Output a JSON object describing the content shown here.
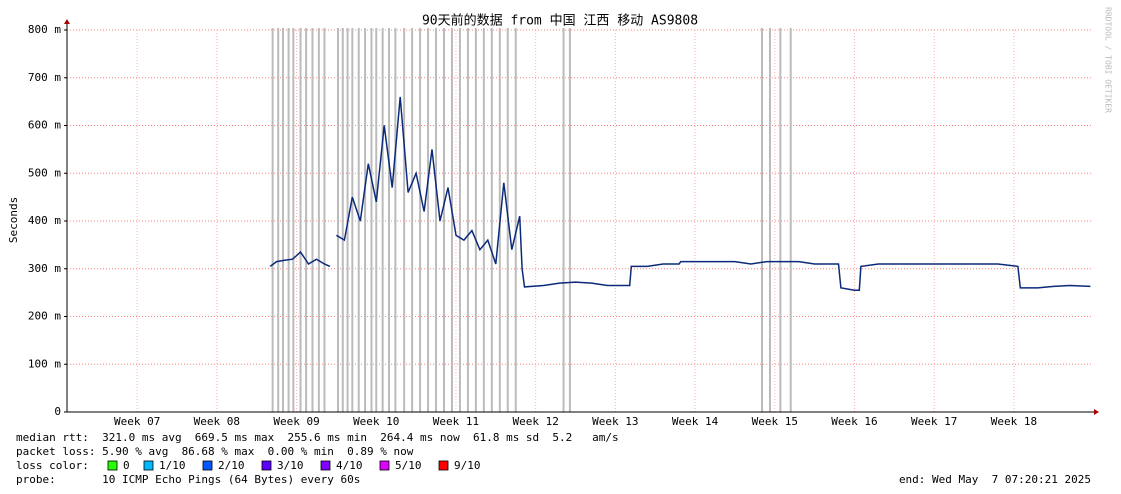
{
  "chart_data": {
    "type": "line",
    "title": "90天前的数据 from 中国 江西 移动 AS9808",
    "y_label": "Seconds",
    "watermark": "RRDTOOL / TOBI OETIKER",
    "xlim": [
      6.62,
      19.48
    ],
    "xticks": [
      {
        "value": 7.5,
        "label": "Week 07"
      },
      {
        "value": 8.5,
        "label": "Week 08"
      },
      {
        "value": 9.5,
        "label": "Week 09"
      },
      {
        "value": 10.5,
        "label": "Week 10"
      },
      {
        "value": 11.5,
        "label": "Week 11"
      },
      {
        "value": 12.5,
        "label": "Week 12"
      },
      {
        "value": 13.5,
        "label": "Week 13"
      },
      {
        "value": 14.5,
        "label": "Week 14"
      },
      {
        "value": 15.5,
        "label": "Week 15"
      },
      {
        "value": 16.5,
        "label": "Week 16"
      },
      {
        "value": 17.5,
        "label": "Week 17"
      },
      {
        "value": 18.5,
        "label": "Week 18"
      }
    ],
    "ylim": [
      0,
      0.8
    ],
    "yticks": [
      0,
      {
        "value": 0.1,
        "label": "100 m"
      },
      {
        "value": 0.2,
        "label": "200 m"
      },
      {
        "value": 0.3,
        "label": "300 m"
      },
      {
        "value": 0.4,
        "label": "400 m"
      },
      {
        "value": 0.5,
        "label": "500 m"
      },
      {
        "value": 0.6,
        "label": "600 m"
      },
      {
        "value": 0.7,
        "label": "700 m"
      },
      {
        "value": 0.8,
        "label": "800 m"
      }
    ],
    "grid": true,
    "loss_spike_color": "#bbbbbb",
    "loss_spikes": [
      9.2,
      9.27,
      9.33,
      9.4,
      9.46,
      9.55,
      9.62,
      9.7,
      9.78,
      9.85,
      10.02,
      10.08,
      10.14,
      10.2,
      10.28,
      10.36,
      10.44,
      10.5,
      10.58,
      10.66,
      10.74,
      10.85,
      10.95,
      11.05,
      11.15,
      11.25,
      11.35,
      11.45,
      11.55,
      11.65,
      11.75,
      11.85,
      11.95,
      12.05,
      12.15,
      12.25,
      12.85,
      12.93,
      15.34,
      15.44,
      15.57,
      15.7
    ],
    "series": [
      {
        "color": "#0b2a7a",
        "x": [
          9.17,
          9.25,
          9.35,
          9.45,
          9.55,
          9.65,
          9.75,
          9.85,
          9.92,
          9.96,
          10.0,
          10.1,
          10.2,
          10.3,
          10.4,
          10.5,
          10.6,
          10.7,
          10.8,
          10.9,
          11.0,
          11.1,
          11.2,
          11.3,
          11.4,
          11.5,
          11.6,
          11.7,
          11.8,
          11.9,
          12.0,
          12.1,
          12.2,
          12.3,
          12.33,
          12.36,
          12.6,
          12.8,
          13.0,
          13.2,
          13.4,
          13.68,
          13.7,
          13.9,
          14.1,
          14.3,
          14.32,
          14.5,
          14.8,
          15.0,
          15.2,
          15.4,
          15.6,
          15.8,
          16.0,
          16.3,
          16.33,
          16.5,
          16.56,
          16.58,
          16.8,
          17.0,
          17.2,
          17.5,
          17.8,
          18.0,
          18.3,
          18.55,
          18.58,
          18.8,
          19.0,
          19.2,
          19.46
        ],
        "values": [
          0.305,
          0.315,
          0.318,
          0.32,
          0.335,
          0.31,
          0.32,
          0.31,
          0.305,
          null,
          0.37,
          0.36,
          0.45,
          0.4,
          0.52,
          0.44,
          0.6,
          0.47,
          0.66,
          0.46,
          0.5,
          0.42,
          0.55,
          0.4,
          0.47,
          0.37,
          0.36,
          0.38,
          0.34,
          0.36,
          0.31,
          0.48,
          0.34,
          0.41,
          0.3,
          0.262,
          0.265,
          0.27,
          0.272,
          0.27,
          0.265,
          0.265,
          0.305,
          0.305,
          0.31,
          0.31,
          0.315,
          0.315,
          0.315,
          0.315,
          0.31,
          0.315,
          0.315,
          0.315,
          0.31,
          0.31,
          0.26,
          0.255,
          0.255,
          0.305,
          0.31,
          0.31,
          0.31,
          0.31,
          0.31,
          0.31,
          0.31,
          0.305,
          0.26,
          0.26,
          0.263,
          0.265,
          0.263
        ]
      }
    ],
    "stats": [
      "median rtt:  321.0 ms avg  669.5 ms max  255.6 ms min  264.4 ms now  61.8 ms sd  5.2   am/s",
      "packet loss: 5.90 % avg  86.68 % max  0.00 % min  0.89 % now"
    ],
    "loss_color_label": "loss color:",
    "loss_colors": [
      {
        "label": "0",
        "color": "#26ff00"
      },
      {
        "label": "1/10",
        "color": "#00b8ff"
      },
      {
        "label": "2/10",
        "color": "#0059ff"
      },
      {
        "label": "3/10",
        "color": "#5e00ff"
      },
      {
        "label": "4/10",
        "color": "#7e00ff"
      },
      {
        "label": "5/10",
        "color": "#dd00ff"
      },
      {
        "label": "9/10",
        "color": "#ff0000"
      }
    ],
    "probe": "probe:       10 ICMP Echo Pings (64 Bytes) every 60s",
    "end": "end: Wed May  7 07:20:21 2025"
  }
}
